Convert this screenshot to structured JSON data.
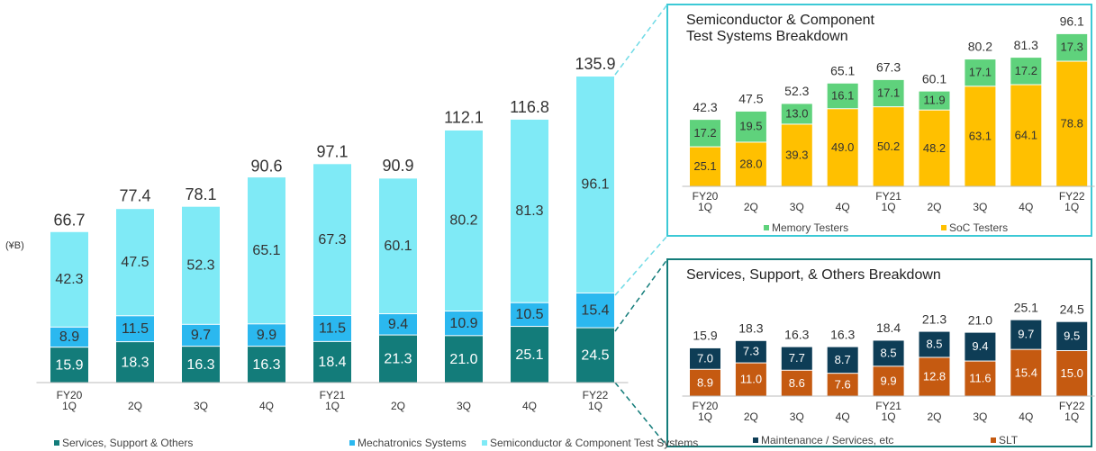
{
  "chart_data": [
    {
      "type": "bar",
      "stacked": true,
      "unit_label": "(¥B)",
      "categories": [
        "FY20\n1Q",
        "2Q",
        "3Q",
        "4Q",
        "FY21\n1Q",
        "2Q",
        "3Q",
        "4Q",
        "FY22\n1Q"
      ],
      "series": [
        {
          "name": "Services, Support & Others",
          "color": "#137c7a",
          "values": [
            15.9,
            18.3,
            16.3,
            16.3,
            18.4,
            21.3,
            21.0,
            25.1,
            24.5
          ],
          "value_labels": [
            "15.9",
            "18.3",
            "16.3",
            "16.3",
            "18.4",
            "21.3",
            "21.0",
            "25.1",
            "24.5"
          ]
        },
        {
          "name": "Mechatronics Systems",
          "color": "#2bb8ef",
          "values": [
            8.9,
            11.5,
            9.7,
            9.9,
            11.5,
            9.4,
            10.9,
            10.5,
            15.4
          ]
        },
        {
          "name": "Semiconductor & Component Test Systems",
          "color": "#7feaf6",
          "values": [
            42.3,
            47.5,
            52.3,
            65.1,
            67.3,
            60.1,
            80.2,
            81.3,
            96.1
          ]
        }
      ],
      "totals": [
        66.7,
        77.4,
        78.1,
        90.6,
        97.1,
        90.9,
        112.1,
        116.8,
        135.9
      ],
      "ylim": [
        0,
        140
      ],
      "legend": "bottom"
    },
    {
      "type": "bar",
      "stacked": true,
      "title": "Semiconductor & Component\nTest Systems Breakdown",
      "categories": [
        "FY20\n1Q",
        "2Q",
        "3Q",
        "4Q",
        "FY21\n1Q",
        "2Q",
        "3Q",
        "4Q",
        "FY22\n1Q"
      ],
      "series": [
        {
          "name": "SoC Testers",
          "color": "#ffc000",
          "values": [
            25.1,
            28.0,
            39.3,
            49.0,
            50.2,
            48.2,
            63.1,
            64.1,
            78.8
          ],
          "value_labels": [
            "25.1",
            "28.0",
            "39.3",
            "49.0",
            "50.2",
            "48.2",
            "63.1",
            "64.1",
            "78.8"
          ]
        },
        {
          "name": "Memory Testers",
          "color": "#5fd27c",
          "values": [
            17.2,
            19.5,
            13.0,
            16.1,
            17.1,
            11.9,
            17.1,
            17.2,
            17.3
          ],
          "value_labels": [
            "17.2",
            "19.5",
            "13.0",
            "16.1",
            "17.1",
            "11.9",
            "17.1",
            "17.2",
            "17.3"
          ]
        }
      ],
      "totals": [
        42.3,
        47.5,
        52.3,
        65.1,
        67.3,
        60.1,
        80.2,
        81.3,
        96.1
      ],
      "ylim": [
        0,
        100
      ],
      "legend": "bottom"
    },
    {
      "type": "bar",
      "stacked": true,
      "title": "Services, Support, & Others Breakdown",
      "categories": [
        "FY20\n1Q",
        "2Q",
        "3Q",
        "4Q",
        "FY21\n1Q",
        "2Q",
        "3Q",
        "4Q",
        "FY22\n1Q"
      ],
      "series": [
        {
          "name": "SLT",
          "color": "#c55a11",
          "values": [
            8.9,
            11.0,
            8.6,
            7.6,
            9.9,
            12.8,
            11.6,
            15.4,
            15.0
          ],
          "value_labels": [
            "8.9",
            "11.0",
            "8.6",
            "7.6",
            "9.9",
            "12.8",
            "11.6",
            "15.4",
            "15.0"
          ]
        },
        {
          "name": "Maintenance / Services, etc",
          "color": "#0e3d56",
          "values": [
            7.0,
            7.3,
            7.7,
            8.7,
            8.5,
            8.5,
            9.4,
            9.7,
            9.5
          ],
          "value_labels": [
            "7.0",
            "7.3",
            "7.7",
            "8.7",
            "8.5",
            "8.5",
            "9.4",
            "9.7",
            "9.5"
          ]
        }
      ],
      "totals": [
        15.9,
        18.3,
        16.3,
        16.3,
        18.4,
        21.3,
        21.0,
        25.1,
        24.5
      ],
      "total_labels": [
        "15.9",
        "18.3",
        "16.3",
        "16.3",
        "18.4",
        "21.3",
        "21.0",
        "25.1",
        "24.5"
      ],
      "ylim": [
        0,
        30
      ],
      "legend": "bottom"
    }
  ]
}
